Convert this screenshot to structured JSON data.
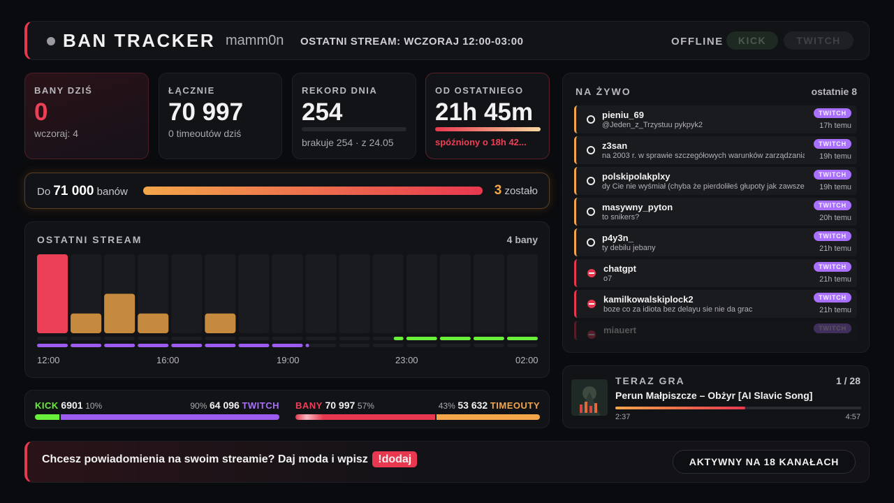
{
  "header": {
    "title": "BAN TRACKER",
    "user": "mamm0n",
    "last_stream": "OSTATNI STREAM: WCZORAJ 12:00-03:00",
    "status": "OFFLINE",
    "platforms": [
      "KICK",
      "TWITCH"
    ]
  },
  "stats": [
    {
      "label": "BANY DZIŚ",
      "value": "0",
      "sub": "wczoraj: 4"
    },
    {
      "label": "ŁĄCZNIE",
      "value": "70 997",
      "sub": "0 timeoutów dziś"
    },
    {
      "label": "REKORD DNIA",
      "value": "254",
      "sub": "brakuje 254 · z 24.05"
    },
    {
      "label": "OD OSTATNIEGO",
      "value": "21h 45m",
      "sub": "spóźniony o 18h 42..."
    }
  ],
  "goal": {
    "prefix": "Do",
    "target": "71 000",
    "suffix": "banów",
    "remaining": "3",
    "remaining_label": "zostało"
  },
  "chart": {
    "type": "bar",
    "title": "OSTATNI STREAM",
    "summary": "4 bany",
    "values": [
      4,
      1,
      2,
      1,
      0,
      1,
      0,
      0,
      0,
      0,
      0,
      0,
      0,
      0,
      0
    ],
    "colors": [
      "#ec4057",
      "#c58a3e",
      "#c58a3e",
      "#c58a3e",
      "#c58a3e",
      "#c58a3e",
      "#c58a3e",
      "#c58a3e",
      "#c58a3e",
      "#c58a3e",
      "#c58a3e",
      "#c58a3e",
      "#c58a3e",
      "#c58a3e",
      "#c58a3e"
    ],
    "ylim": [
      0,
      4
    ],
    "time_labels": [
      "12:00",
      "16:00",
      "19:00",
      "23:00",
      "02:00"
    ]
  },
  "split": [
    {
      "left": {
        "label": "KICK",
        "value": "6901",
        "pct": "10%"
      },
      "right": {
        "label": "TWITCH",
        "value": "64 096",
        "pct": "90%"
      }
    },
    {
      "left": {
        "label": "BANY",
        "value": "70 997",
        "pct": "57%"
      },
      "right": {
        "label": "TIMEOUTY",
        "value": "53 632",
        "pct": "43%"
      }
    }
  ],
  "live": {
    "title": "NA ŻYWO",
    "subtitle": "ostatnie 8",
    "items": [
      {
        "user": "pieniu_69",
        "msg": "@Jeden_z_Trzystuu pykpyk2",
        "platform": "TWITCH",
        "time": "17h temu",
        "kind": "timeout"
      },
      {
        "user": "z3san",
        "msg": "na 2003 r. w sprawie szczegółowych warunków zarządzania",
        "platform": "TWITCH",
        "time": "19h temu",
        "kind": "timeout"
      },
      {
        "user": "polskipolakplxy",
        "msg": "dy Cie nie wyśmiał (chyba że pierdoliłeś głupoty jak zawsze",
        "platform": "TWITCH",
        "time": "19h temu",
        "kind": "timeout"
      },
      {
        "user": "masywny_pyton",
        "msg": "to snikers?",
        "platform": "TWITCH",
        "time": "20h temu",
        "kind": "timeout"
      },
      {
        "user": "p4y3n_",
        "msg": "ty debilu jebany",
        "platform": "TWITCH",
        "time": "21h temu",
        "kind": "timeout"
      },
      {
        "user": "chatgpt",
        "msg": "o7",
        "platform": "TWITCH",
        "time": "21h temu",
        "kind": "ban"
      },
      {
        "user": "kamilkowalskiplock2",
        "msg": "boze co za idiota bez delayu sie nie da grac",
        "platform": "TWITCH",
        "time": "21h temu",
        "kind": "ban"
      },
      {
        "user": "miauert",
        "platform": "TWITCH",
        "kind": "ban"
      }
    ]
  },
  "now_playing": {
    "title": "TERAZ GRA",
    "position": "1 / 28",
    "song": "Perun Małpiszcze – Obżyr [AI Slavic Song]",
    "elapsed": "2:37",
    "duration": "4:57"
  },
  "footer": {
    "text": "Chcesz powiadomienia na swoim streamie? Daj moda i wpisz",
    "command": "!dodaj",
    "channels": "AKTYWNY NA 18 KANAŁACH"
  }
}
